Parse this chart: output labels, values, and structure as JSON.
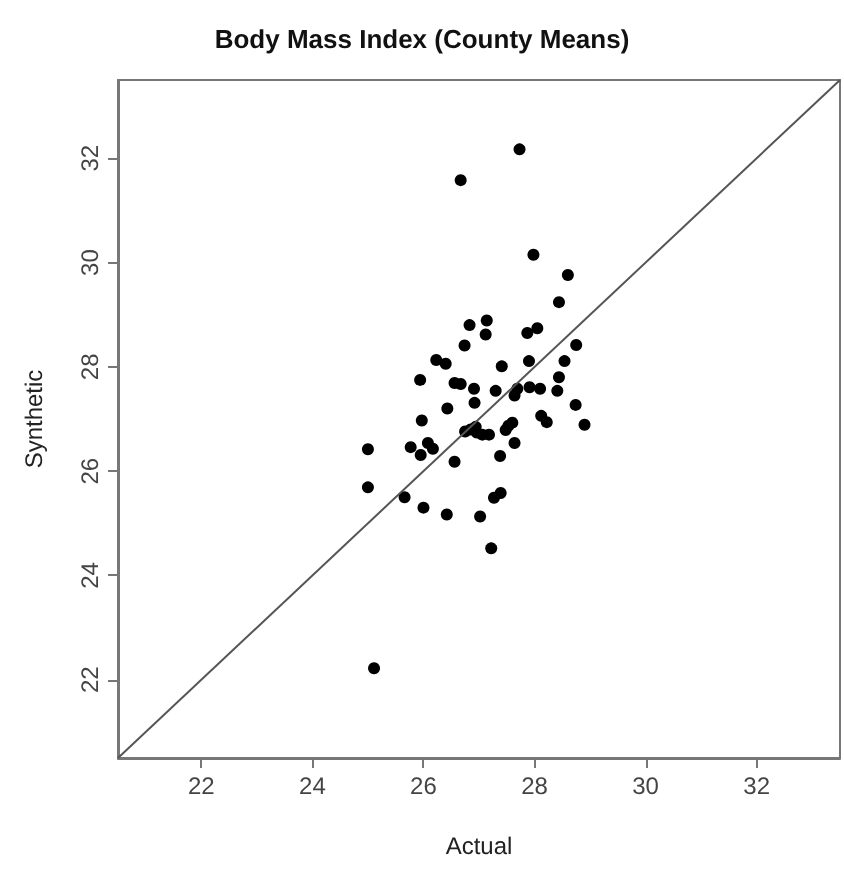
{
  "chart_data": {
    "type": "scatter",
    "title": "Body Mass Index (County Means)",
    "xlabel": "Actual",
    "ylabel": "Synthetic",
    "xlim": [
      20.5,
      33.5
    ],
    "ylim": [
      20.5,
      33.5
    ],
    "xticks": [
      22,
      24,
      26,
      28,
      30,
      32
    ],
    "yticks": [
      22,
      24,
      26,
      28,
      30,
      32
    ],
    "grid": false,
    "marker": "circle",
    "series": [
      {
        "color": "#000000",
        "x": [
          27.73,
          26.67,
          27.98,
          28.6,
          28.44,
          26.83,
          27.14,
          27.12,
          27.87,
          28.05,
          26.74,
          28.75,
          26.23,
          26.4,
          27.41,
          27.9,
          28.54,
          25.94,
          26.56,
          26.67,
          26.91,
          27.3,
          27.69,
          27.91,
          28.1,
          28.41,
          28.44,
          27.64,
          26.92,
          26.43,
          28.74,
          28.12,
          28.22,
          28.9,
          25.97,
          27.6,
          27.53,
          27.48,
          26.85,
          26.75,
          26.96,
          27.06,
          27.18,
          26.94,
          27.64,
          25.0,
          25.77,
          26.08,
          26.17,
          25.95,
          27.38,
          26.56,
          25.0,
          25.66,
          27.39,
          27.27,
          26.0,
          26.42,
          27.02,
          27.22,
          25.11
        ],
        "values": [
          32.17,
          31.58,
          30.15,
          29.76,
          29.24,
          28.8,
          28.89,
          28.62,
          28.65,
          28.74,
          28.41,
          28.42,
          28.13,
          28.06,
          28.01,
          28.11,
          28.11,
          27.75,
          27.69,
          27.67,
          27.58,
          27.54,
          27.58,
          27.61,
          27.58,
          27.54,
          27.8,
          27.45,
          27.31,
          27.2,
          27.27,
          27.06,
          26.94,
          26.89,
          26.97,
          26.93,
          26.87,
          26.79,
          26.8,
          26.76,
          26.74,
          26.7,
          26.7,
          26.85,
          26.54,
          26.42,
          26.46,
          26.54,
          26.43,
          26.31,
          26.29,
          26.18,
          25.69,
          25.5,
          25.58,
          25.49,
          25.3,
          25.17,
          25.13,
          24.52,
          22.22
        ]
      },
      {
        "type": "line",
        "color": "#555555",
        "marker": "none",
        "x": [
          20.5,
          33.5
        ],
        "values": [
          20.5,
          33.5
        ]
      }
    ]
  }
}
